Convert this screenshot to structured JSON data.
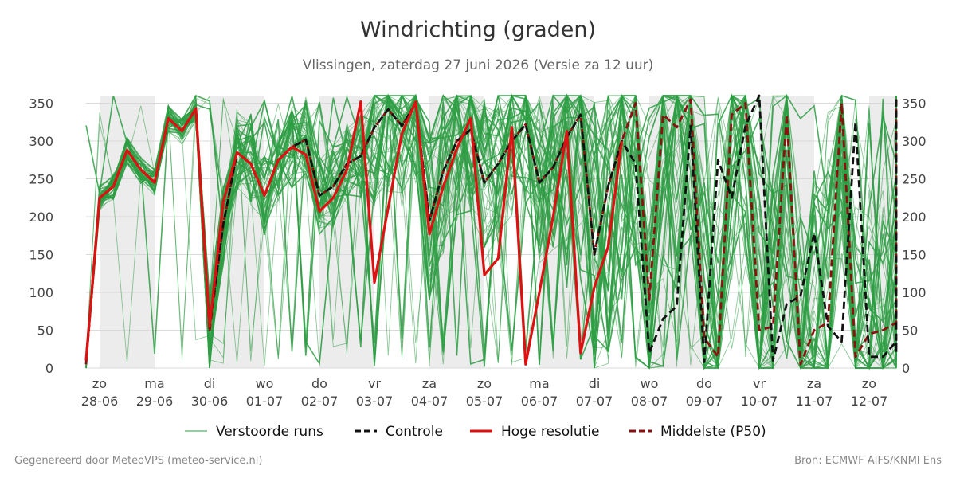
{
  "chart_data": {
    "type": "line",
    "title": "Windrichting (graden)",
    "subtitle": "Vlissingen, zaterdag 27 juni 2026 (Versie za 12 uur)",
    "ylim": [
      0,
      360
    ],
    "yticks": [
      0,
      50,
      100,
      150,
      200,
      250,
      300,
      350
    ],
    "xlim": [
      0,
      369
    ],
    "grid": "horizontal",
    "legend_position": "bottom",
    "x_unit": "hours since 28-06 00:00 (6-hourly steps)",
    "x_ticks": [
      {
        "x": 0,
        "day": "zo",
        "date": "28-06"
      },
      {
        "x": 24,
        "day": "ma",
        "date": "29-06"
      },
      {
        "x": 48,
        "day": "di",
        "date": "30-06"
      },
      {
        "x": 72,
        "day": "wo",
        "date": "01-07"
      },
      {
        "x": 96,
        "day": "do",
        "date": "02-07"
      },
      {
        "x": 120,
        "day": "vr",
        "date": "03-07"
      },
      {
        "x": 144,
        "day": "za",
        "date": "04-07"
      },
      {
        "x": 168,
        "day": "zo",
        "date": "05-07"
      },
      {
        "x": 192,
        "day": "ma",
        "date": "06-07"
      },
      {
        "x": 216,
        "day": "di",
        "date": "07-07"
      },
      {
        "x": 240,
        "day": "wo",
        "date": "08-07"
      },
      {
        "x": 264,
        "day": "do",
        "date": "09-07"
      },
      {
        "x": 288,
        "day": "vr",
        "date": "10-07"
      },
      {
        "x": 312,
        "day": "za",
        "date": "11-07"
      },
      {
        "x": 336,
        "day": "zo",
        "date": "12-07"
      }
    ],
    "shaded_days": [
      [
        0,
        24
      ],
      [
        48,
        72
      ],
      [
        96,
        120
      ],
      [
        144,
        168
      ],
      [
        192,
        216
      ],
      [
        240,
        264
      ],
      [
        288,
        312
      ],
      [
        336,
        369
      ]
    ],
    "series": [
      {
        "name": "Hoge resolutie",
        "color": "#dd1111",
        "style": "solid",
        "points": [
          [
            -6,
            10
          ],
          [
            0,
            225
          ],
          [
            6,
            240
          ],
          [
            12,
            288
          ],
          [
            18,
            262
          ],
          [
            24,
            245
          ],
          [
            30,
            330
          ],
          [
            36,
            313
          ],
          [
            42,
            343
          ],
          [
            48,
            55
          ],
          [
            54,
            220
          ],
          [
            60,
            285
          ],
          [
            66,
            270
          ],
          [
            72,
            228
          ],
          [
            78,
            275
          ],
          [
            84,
            292
          ],
          [
            90,
            282
          ],
          [
            96,
            207
          ],
          [
            102,
            225
          ],
          [
            108,
            262
          ],
          [
            114,
            352
          ],
          [
            120,
            113
          ],
          [
            126,
            212
          ],
          [
            132,
            310
          ],
          [
            138,
            352
          ],
          [
            144,
            177
          ],
          [
            150,
            240
          ],
          [
            156,
            290
          ],
          [
            162,
            330
          ],
          [
            168,
            123
          ],
          [
            174,
            145
          ],
          [
            180,
            318
          ],
          [
            186,
            5
          ],
          [
            192,
            100
          ],
          [
            198,
            200
          ],
          [
            204,
            313
          ],
          [
            210,
            20
          ],
          [
            216,
            107
          ],
          [
            222,
            160
          ],
          [
            228,
            300
          ]
        ]
      },
      {
        "name": "Controle",
        "color": "#111111",
        "style": "dashed",
        "points": [
          [
            -6,
            10
          ],
          [
            0,
            225
          ],
          [
            6,
            240
          ],
          [
            12,
            288
          ],
          [
            18,
            262
          ],
          [
            24,
            245
          ],
          [
            30,
            330
          ],
          [
            36,
            313
          ],
          [
            42,
            343
          ],
          [
            48,
            55
          ],
          [
            54,
            190
          ],
          [
            60,
            285
          ],
          [
            66,
            270
          ],
          [
            72,
            228
          ],
          [
            78,
            275
          ],
          [
            84,
            292
          ],
          [
            90,
            302
          ],
          [
            96,
            228
          ],
          [
            102,
            240
          ],
          [
            108,
            270
          ],
          [
            114,
            280
          ],
          [
            120,
            318
          ],
          [
            126,
            342
          ],
          [
            132,
            320
          ],
          [
            138,
            350
          ],
          [
            144,
            195
          ],
          [
            150,
            260
          ],
          [
            156,
            300
          ],
          [
            162,
            315
          ],
          [
            168,
            245
          ],
          [
            174,
            270
          ],
          [
            180,
            300
          ],
          [
            186,
            322
          ],
          [
            192,
            245
          ],
          [
            198,
            265
          ],
          [
            204,
            305
          ],
          [
            210,
            335
          ],
          [
            216,
            150
          ],
          [
            222,
            240
          ],
          [
            228,
            300
          ],
          [
            234,
            270
          ],
          [
            240,
            20
          ],
          [
            246,
            65
          ],
          [
            252,
            82
          ],
          [
            258,
            320
          ],
          [
            264,
            8
          ],
          [
            270,
            275
          ],
          [
            276,
            225
          ],
          [
            282,
            320
          ],
          [
            288,
            360
          ],
          [
            294,
            10
          ],
          [
            300,
            85
          ],
          [
            306,
            95
          ],
          [
            312,
            178
          ],
          [
            318,
            55
          ],
          [
            324,
            35
          ],
          [
            330,
            325
          ],
          [
            336,
            15
          ],
          [
            342,
            15
          ],
          [
            348,
            35
          ],
          [
            354,
            20
          ],
          [
            360,
            360
          ]
        ]
      },
      {
        "name": "Middelste (P50)",
        "color": "#8b1111",
        "style": "dashed",
        "points": [
          [
            -6,
            5
          ],
          [
            0,
            225
          ],
          [
            6,
            240
          ],
          [
            12,
            288
          ],
          [
            18,
            262
          ],
          [
            24,
            245
          ],
          [
            30,
            330
          ],
          [
            36,
            313
          ],
          [
            42,
            343
          ],
          [
            48,
            48
          ],
          [
            54,
            190
          ],
          [
            60,
            285
          ],
          [
            66,
            270
          ],
          [
            72,
            228
          ],
          [
            78,
            275
          ],
          [
            84,
            292
          ],
          [
            90,
            302
          ],
          [
            96,
            228
          ],
          [
            102,
            240
          ],
          [
            108,
            270
          ],
          [
            114,
            280
          ],
          [
            120,
            318
          ],
          [
            126,
            342
          ],
          [
            132,
            320
          ],
          [
            138,
            350
          ],
          [
            144,
            195
          ],
          [
            150,
            260
          ],
          [
            156,
            300
          ],
          [
            162,
            315
          ],
          [
            168,
            245
          ],
          [
            174,
            270
          ],
          [
            180,
            300
          ],
          [
            186,
            322
          ],
          [
            192,
            245
          ],
          [
            198,
            265
          ],
          [
            204,
            305
          ],
          [
            210,
            335
          ],
          [
            216,
            150
          ],
          [
            222,
            240
          ],
          [
            228,
            300
          ],
          [
            234,
            350
          ],
          [
            240,
            90
          ],
          [
            246,
            335
          ],
          [
            252,
            318
          ],
          [
            258,
            355
          ],
          [
            264,
            40
          ],
          [
            270,
            15
          ],
          [
            276,
            335
          ],
          [
            282,
            350
          ],
          [
            288,
            50
          ],
          [
            294,
            55
          ],
          [
            300,
            335
          ],
          [
            306,
            5
          ],
          [
            312,
            50
          ],
          [
            318,
            60
          ],
          [
            324,
            350
          ],
          [
            330,
            15
          ],
          [
            336,
            45
          ],
          [
            342,
            50
          ],
          [
            348,
            60
          ],
          [
            354,
            350
          ],
          [
            360,
            355
          ]
        ]
      }
    ],
    "ensemble": {
      "name": "Verstoorde runs",
      "color": "#2e9e44",
      "members": 50,
      "note": "50 perturbed ensemble members, individual values not readable"
    }
  },
  "legend": [
    {
      "label": "Verstoorde runs",
      "color": "#2e9e44",
      "style": "thin"
    },
    {
      "label": "Controle",
      "color": "#111111",
      "style": "dashed"
    },
    {
      "label": "Hoge resolutie",
      "color": "#dd1111",
      "style": "solid"
    },
    {
      "label": "Middelste (P50)",
      "color": "#8b1111",
      "style": "dashed"
    }
  ],
  "footer": {
    "left": "Gegenereerd door MeteoVPS (meteo-service.nl)",
    "right": "Bron: ECMWF AIFS/KNMI Ens"
  }
}
